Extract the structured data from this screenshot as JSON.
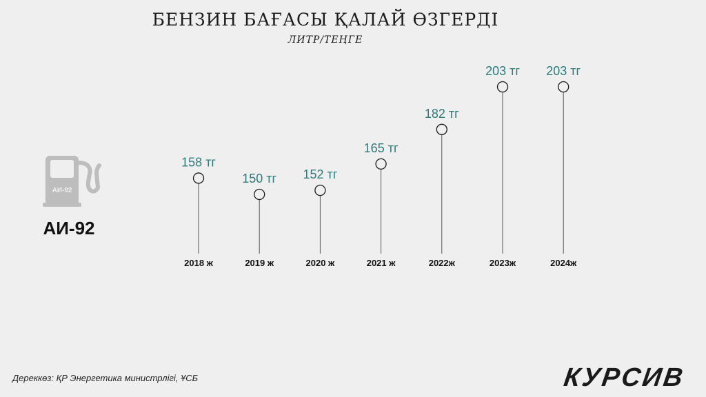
{
  "header": {
    "title": "БЕНЗИН БАҒАСЫ ҚАЛАЙ ӨЗГЕРДІ",
    "subtitle": "ЛИТР/ТЕҢГЕ"
  },
  "fuel": {
    "pump_label": "АИ-92",
    "label": "АИ-92",
    "icon": "fuel-pump-icon",
    "icon_color": "#bdbdbd"
  },
  "footer": {
    "source": "Дереккөз: ҚР Энергетика министрлігі, ҰСБ",
    "brand": "КУРСИВ"
  },
  "colors": {
    "value_text": "#2e7b7b",
    "line": "#555555",
    "marker_stroke": "#1a1a1a"
  },
  "chart_data": {
    "type": "line",
    "categories": [
      "2018 ж",
      "2019 ж",
      "2020 ж",
      "2021 ж",
      "2022ж",
      "2023ж",
      "2024ж"
    ],
    "values": [
      158,
      150,
      152,
      165,
      182,
      203,
      203
    ],
    "value_labels": [
      "158 тг",
      "150 тг",
      "152 тг",
      "165 тг",
      "182 тг",
      "203 тг",
      "203 тг"
    ],
    "grid": false,
    "legend": "none"
  }
}
